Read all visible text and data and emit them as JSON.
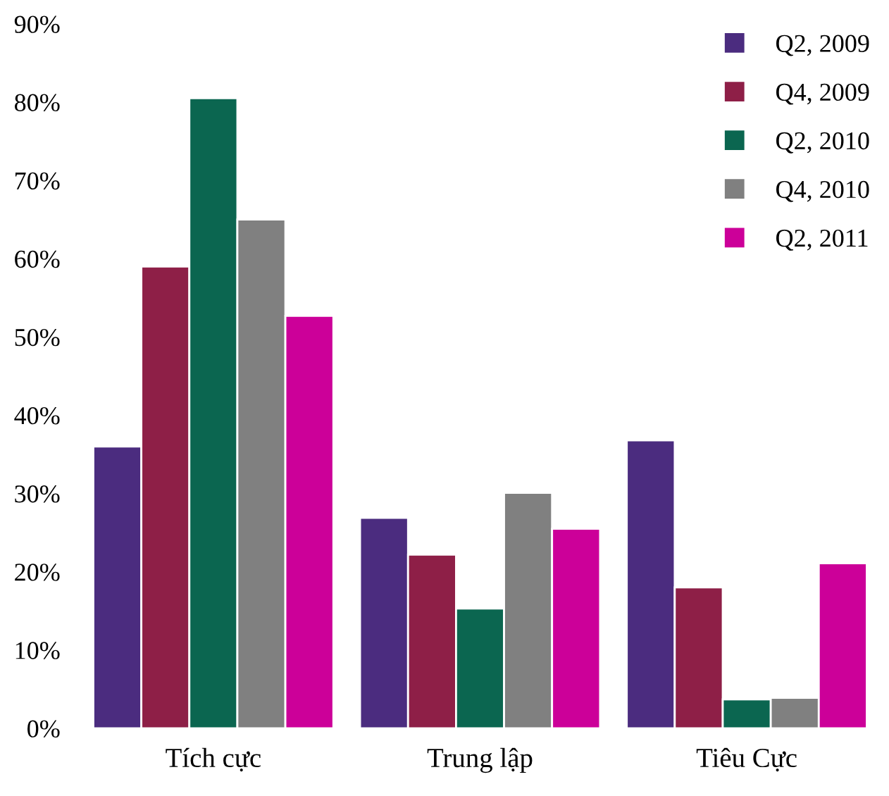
{
  "chart_data": {
    "type": "bar",
    "categories": [
      "Tích cực",
      "Trung lập",
      "Tiêu Cực"
    ],
    "series": [
      {
        "name": "Q2, 2009",
        "color": "#4b2c7f",
        "values": [
          36,
          26.9,
          36.8
        ]
      },
      {
        "name": "Q4, 2009",
        "color": "#8e1f47",
        "values": [
          59,
          22.2,
          18
        ]
      },
      {
        "name": "Q2, 2010",
        "color": "#0b6650",
        "values": [
          80.5,
          15.3,
          3.7
        ]
      },
      {
        "name": "Q4, 2010",
        "color": "#808080",
        "values": [
          65,
          30.1,
          3.9
        ]
      },
      {
        "name": "Q2, 2011",
        "color": "#cc0099",
        "values": [
          52.7,
          25.5,
          21.1
        ]
      }
    ],
    "ylim": [
      0,
      90
    ],
    "yticks": [
      {
        "value": 0,
        "label": "0%"
      },
      {
        "value": 10,
        "label": "10%"
      },
      {
        "value": 20,
        "label": "20%"
      },
      {
        "value": 30,
        "label": "30%"
      },
      {
        "value": 40,
        "label": "40%"
      },
      {
        "value": 50,
        "label": "50%"
      },
      {
        "value": 60,
        "label": "60%"
      },
      {
        "value": 70,
        "label": "70%"
      },
      {
        "value": 80,
        "label": "80%"
      },
      {
        "value": 90,
        "label": "90%"
      }
    ],
    "grid": false,
    "legend": "top right",
    "marker": "square"
  }
}
